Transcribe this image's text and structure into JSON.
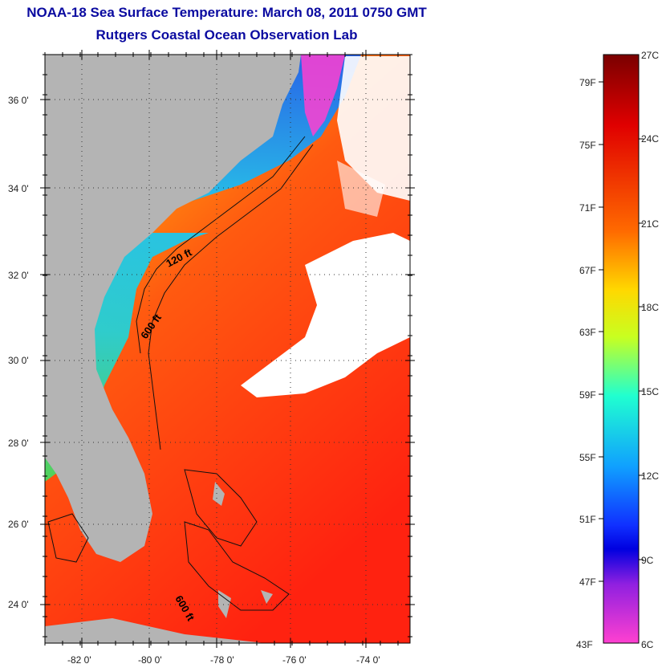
{
  "title": "NOAA-18 Sea Surface Temperature:  March 08, 2011 0750 GMT",
  "subtitle": "Rutgers Coastal Ocean Observation Lab",
  "map": {
    "lat_ticks": [
      "36 0'",
      "34 0'",
      "32 0'",
      "30 0'",
      "28 0'",
      "26 0'",
      "24 0'"
    ],
    "lon_ticks": [
      "-82 0'",
      "-80 0'",
      "-78 0'",
      "-76 0'",
      "-74 0'"
    ],
    "contours": [
      "120 ft",
      "600 ft",
      "600 ft"
    ],
    "colors": {
      "land": "#b4b4b4",
      "cloud": "#ffffff",
      "warm": "#ff3010"
    }
  },
  "colorbar": {
    "fahrenheit": [
      "79F",
      "75F",
      "71F",
      "67F",
      "63F",
      "59F",
      "55F",
      "51F",
      "47F",
      "43F"
    ],
    "celsius": [
      "27C",
      "24C",
      "21C",
      "18C",
      "15C",
      "12C",
      "9C",
      "6C"
    ],
    "range_c": [
      6,
      27
    ]
  }
}
